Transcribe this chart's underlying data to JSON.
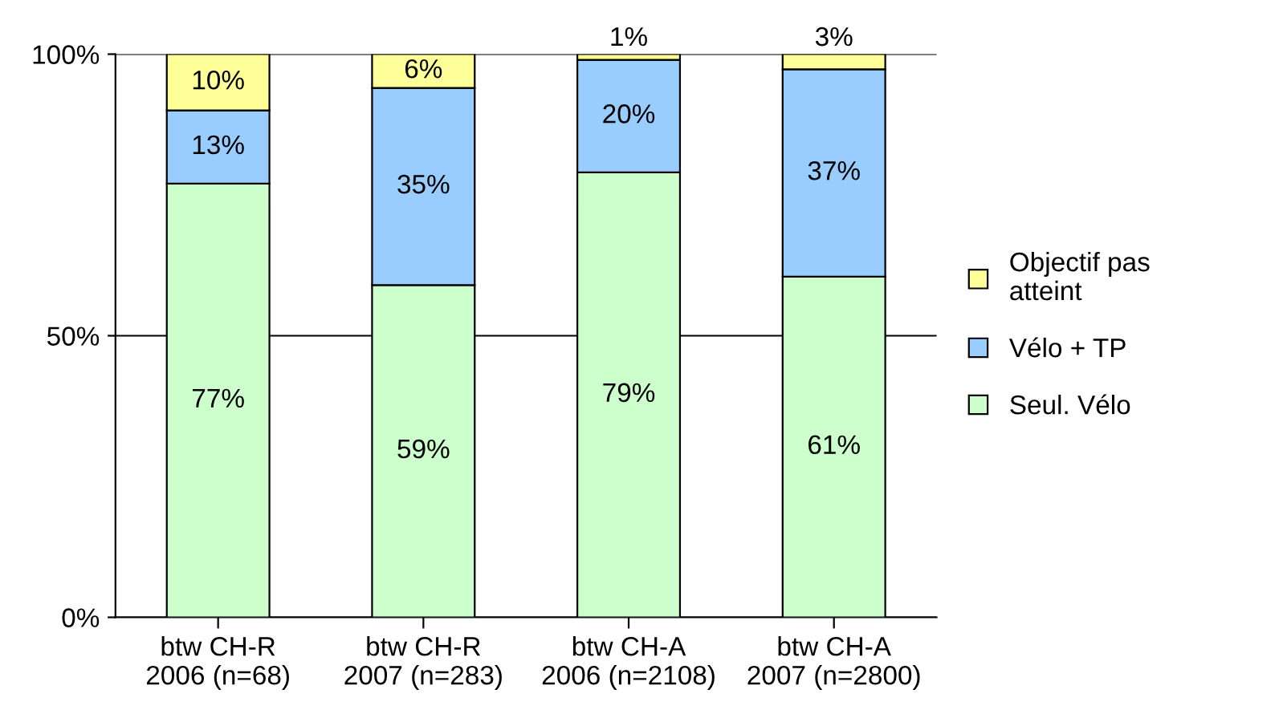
{
  "chart_data": {
    "type": "bar",
    "stacked": true,
    "categories": [
      "btw CH-R\n2006 (n=68)",
      "btw CH-R\n2007 (n=283)",
      "btw CH-A\n2006 (n=2108)",
      "btw CH-A\n2007 (n=2800)"
    ],
    "series": [
      {
        "name": "Seul. Vélo",
        "color": "#ccffcc",
        "values": [
          77,
          59,
          79,
          60.5
        ],
        "value_labels": [
          "77%",
          "59%",
          "79%",
          "61%"
        ]
      },
      {
        "name": "Vélo + TP",
        "color": "#99ccff",
        "values": [
          13,
          35,
          20,
          36.8
        ],
        "value_labels": [
          "13%",
          "35%",
          "20%",
          "37%"
        ]
      },
      {
        "name": "Objectif pas\natteint",
        "color": "#ffff99",
        "values": [
          10,
          6,
          1,
          2.7
        ],
        "value_labels": [
          "10%",
          "6%",
          "1%",
          "3%"
        ]
      }
    ],
    "ylim": [
      0,
      100
    ],
    "yticks": [
      {
        "value": 0,
        "label": "0%"
      },
      {
        "value": 50,
        "label": "50%"
      },
      {
        "value": 100,
        "label": "100%"
      }
    ],
    "grid": "y",
    "legend": "right"
  }
}
